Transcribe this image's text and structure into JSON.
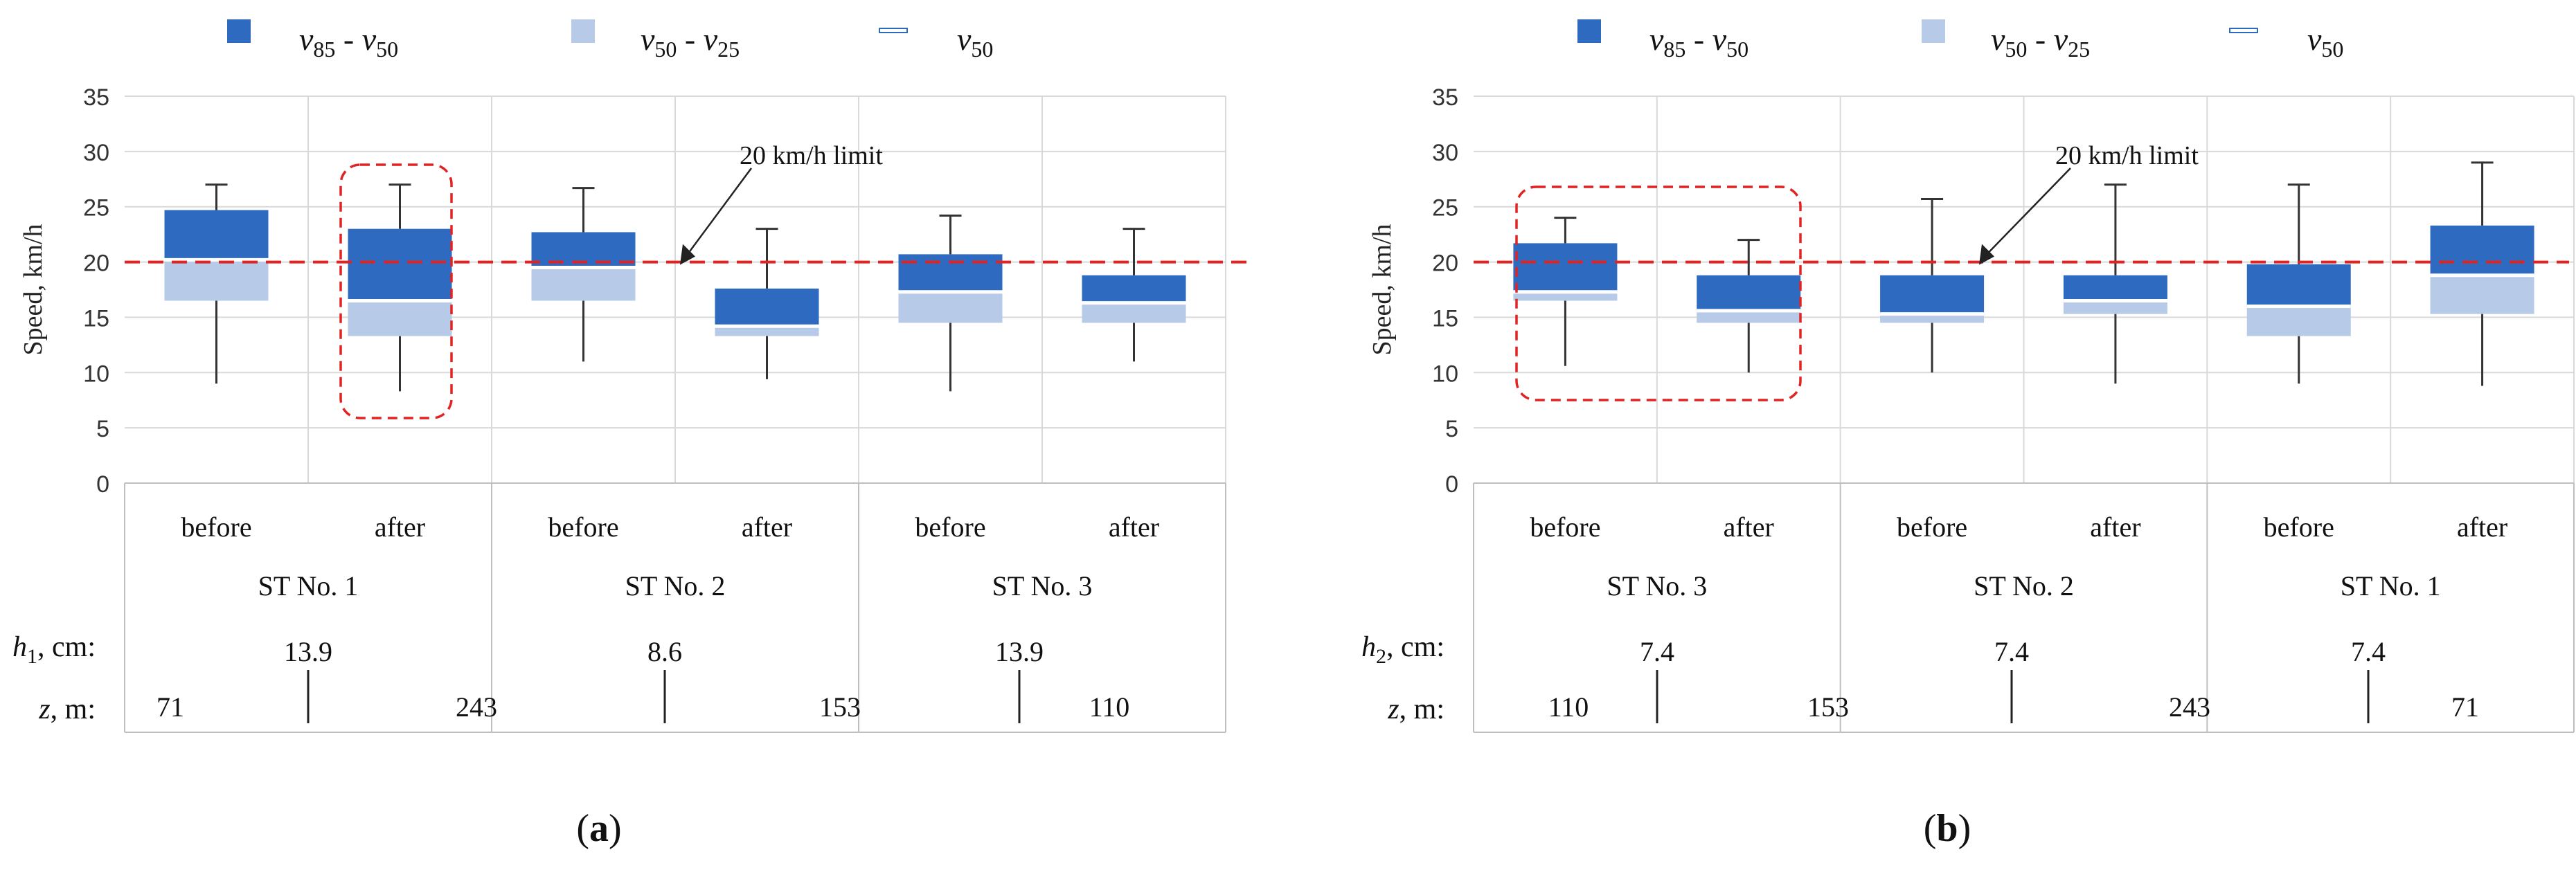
{
  "legend": [
    {
      "sym": "v",
      "a": "85",
      "b": "50",
      "color": "#2e6bc0",
      "kind": "dark"
    },
    {
      "sym": "v",
      "a": "50",
      "b": "25",
      "color": "#b7cae7",
      "kind": "light"
    },
    {
      "sym": "v",
      "a": "50",
      "b": "",
      "color": "#ffffff",
      "kind": "median"
    }
  ],
  "panel_labels": [
    "a",
    "b"
  ],
  "chart_data": [
    {
      "type": "box",
      "panel": "a",
      "ylabel": "Speed, km/h",
      "ylim": [
        0,
        35
      ],
      "yticks": [
        "0",
        "5",
        "10",
        "15",
        "20",
        "25",
        "30",
        "35"
      ],
      "limit_value": 20,
      "limit_label": "20 km/h limit",
      "categories": [
        "before",
        "after",
        "before",
        "after",
        "before",
        "after"
      ],
      "stations": [
        "ST No. 1",
        "ST No. 2",
        "ST No. 3"
      ],
      "boxes": [
        {
          "min": 9,
          "q25": 16.5,
          "median": 20.2,
          "q85": 24.7,
          "max": 27
        },
        {
          "min": 8.3,
          "q25": 13.3,
          "median": 16.5,
          "q85": 23.0,
          "max": 27
        },
        {
          "min": 11,
          "q25": 16.5,
          "median": 19.5,
          "q85": 22.7,
          "max": 26.7
        },
        {
          "min": 9.4,
          "q25": 13.3,
          "median": 14.2,
          "q85": 17.6,
          "max": 23
        },
        {
          "min": 8.3,
          "q25": 14.5,
          "median": 17.3,
          "q85": 20.7,
          "max": 24.2
        },
        {
          "min": 11,
          "q25": 14.5,
          "median": 16.3,
          "q85": 18.8,
          "max": 23
        }
      ],
      "h_label": {
        "sym": "h",
        "sub": "1",
        "rest": ", cm:"
      },
      "z_label": {
        "sym": "z",
        "rest": ", m:"
      },
      "h_values": [
        "13.9",
        "8.6",
        "13.9"
      ],
      "z_values": [
        "71",
        "243",
        "153",
        "110"
      ]
    },
    {
      "type": "box",
      "panel": "b",
      "ylabel": "Speed, km/h",
      "ylim": [
        0,
        35
      ],
      "yticks": [
        "0",
        "5",
        "10",
        "15",
        "20",
        "25",
        "30",
        "35"
      ],
      "limit_value": 20,
      "limit_label": "20 km/h limit",
      "categories": [
        "before",
        "after",
        "before",
        "after",
        "before",
        "after"
      ],
      "stations": [
        "ST No. 3",
        "ST No. 2",
        "ST No. 1"
      ],
      "boxes": [
        {
          "min": 10.6,
          "q25": 16.5,
          "median": 17.3,
          "q85": 21.7,
          "max": 24
        },
        {
          "min": 10,
          "q25": 14.5,
          "median": 15.6,
          "q85": 18.8,
          "max": 22
        },
        {
          "min": 10,
          "q25": 14.5,
          "median": 15.3,
          "q85": 18.8,
          "max": 25.7
        },
        {
          "min": 9,
          "q25": 15.3,
          "median": 16.5,
          "q85": 18.8,
          "max": 27
        },
        {
          "min": 9,
          "q25": 13.3,
          "median": 16.0,
          "q85": 19.8,
          "max": 27
        },
        {
          "min": 8.8,
          "q25": 15.3,
          "median": 18.8,
          "q85": 23.3,
          "max": 29
        }
      ],
      "h_label": {
        "sym": "h",
        "sub": "2",
        "rest": ", cm:"
      },
      "z_label": {
        "sym": "z",
        "rest": ", m:"
      },
      "h_values": [
        "7.4",
        "7.4",
        "7.4"
      ],
      "z_values": [
        "110",
        "153",
        "243",
        "71"
      ]
    }
  ]
}
